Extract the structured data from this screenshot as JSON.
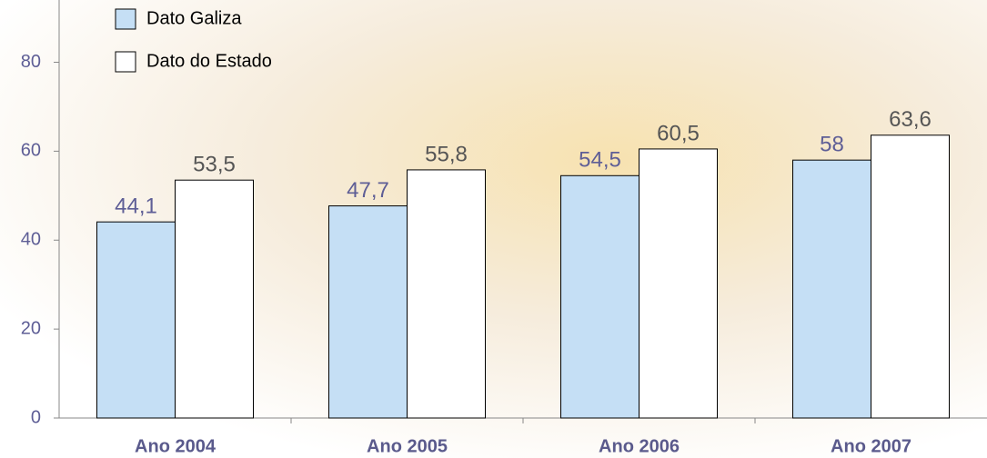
{
  "chart_data": {
    "type": "bar",
    "categories": [
      "Ano 2004",
      "Ano 2005",
      "Ano 2006",
      "Ano 2007"
    ],
    "series": [
      {
        "name": "Dato Galiza",
        "color": "#c5dff5",
        "values": [
          44.1,
          47.7,
          54.5,
          58
        ],
        "value_labels": [
          "44,1",
          "47,7",
          "54,5",
          "58"
        ]
      },
      {
        "name": "Dato do Estado",
        "color": "#ffffff",
        "values": [
          53.5,
          55.8,
          60.5,
          63.6
        ],
        "value_labels": [
          "53,5",
          "55,8",
          "60,5",
          "63,6"
        ]
      }
    ],
    "ylim": [
      0,
      94
    ],
    "yticks": [
      0,
      20,
      40,
      60,
      80
    ],
    "grid": false
  }
}
